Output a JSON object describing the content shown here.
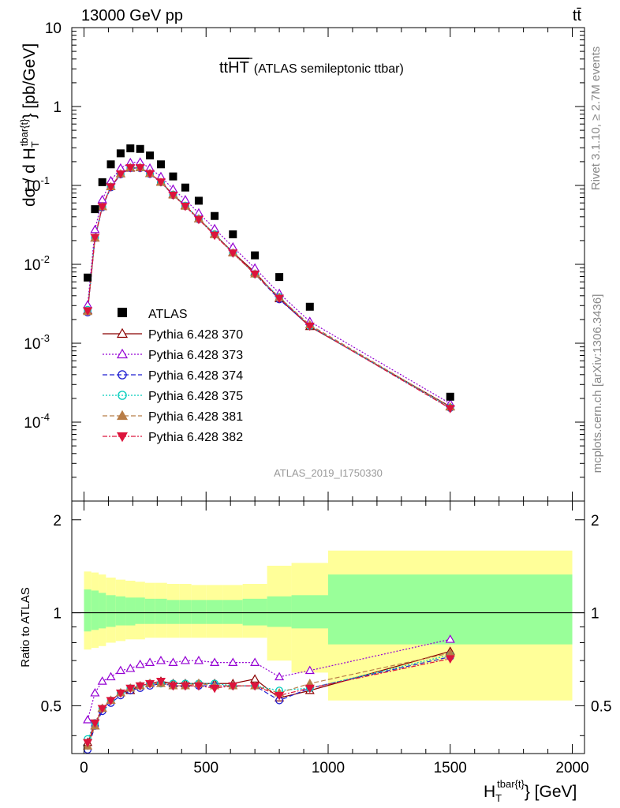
{
  "header": {
    "left": "13000 GeV pp",
    "right": "tt̄",
    "side_rivet": "Rivet 3.1.10, ≥ 2.7M events",
    "side_mcplots": "mcplots.cern.ch [arXiv:1306.3436]",
    "watermark": "ATLAS_2019_I1750330"
  },
  "chart_data": {
    "type": "scatter",
    "title_main": "tt",
    "title_overline": "HT",
    "title_paren": "(ATLAS semileptonic ttbar)",
    "xlabel": "H_T^{tbar{t}} [GeV]",
    "xlabel_main": "H",
    "xlabel_sub": "T",
    "xlabel_sup": "tbar{t}",
    "xlabel_tail": "} [GeV]",
    "ylabel": "dσ / d H_T^{tbar{t}} [pb/GeV]",
    "ylabel_pre": "dσ / d H",
    "ylabel_sub": "T",
    "ylabel_sup": "tbar{t}",
    "ylabel_tail": "} [pb/GeV]",
    "ratio_ylabel": "Ratio to ATLAS",
    "xlim": [
      -50,
      2050
    ],
    "ylim": [
      1e-05,
      10
    ],
    "ylog": true,
    "ratio_ylim": [
      0.35,
      2.3
    ],
    "x_ticks": [
      "0",
      "500",
      "1000",
      "1500",
      "2000"
    ],
    "y_ticks": [
      {
        "base": "10",
        "exp": "-4"
      },
      {
        "base": "10",
        "exp": "-3"
      },
      {
        "base": "10",
        "exp": "-2"
      },
      {
        "base": "10",
        "exp": "-1"
      },
      {
        "base": "1",
        "exp": ""
      },
      {
        "base": "10",
        "exp": ""
      }
    ],
    "ratio_ticks": [
      "0.5",
      "1",
      "2"
    ],
    "x": [
      15,
      45,
      75,
      110,
      150,
      190,
      230,
      270,
      315,
      365,
      415,
      470,
      535,
      610,
      700,
      800,
      925,
      1500
    ],
    "atlas": [
      0.0068,
      0.05,
      0.11,
      0.185,
      0.255,
      0.295,
      0.29,
      0.24,
      0.185,
      0.13,
      0.094,
      0.064,
      0.041,
      0.024,
      0.013,
      0.0069,
      0.0029,
      0.00021
    ],
    "band_edges": [
      0,
      30,
      60,
      90,
      130,
      170,
      210,
      250,
      290,
      340,
      390,
      440,
      500,
      570,
      650,
      750,
      850,
      1000,
      2000
    ],
    "band_inner": [
      [
        0.87,
        1.19
      ],
      [
        0.88,
        1.18
      ],
      [
        0.89,
        1.16
      ],
      [
        0.9,
        1.14
      ],
      [
        0.91,
        1.13
      ],
      [
        0.91,
        1.12
      ],
      [
        0.92,
        1.12
      ],
      [
        0.92,
        1.11
      ],
      [
        0.92,
        1.11
      ],
      [
        0.92,
        1.1
      ],
      [
        0.92,
        1.1
      ],
      [
        0.92,
        1.1
      ],
      [
        0.92,
        1.1
      ],
      [
        0.92,
        1.1
      ],
      [
        0.91,
        1.11
      ],
      [
        0.9,
        1.13
      ],
      [
        0.89,
        1.14
      ],
      [
        0.79,
        1.33
      ]
    ],
    "band_outer": [
      [
        0.76,
        1.36
      ],
      [
        0.77,
        1.35
      ],
      [
        0.78,
        1.33
      ],
      [
        0.8,
        1.3
      ],
      [
        0.81,
        1.28
      ],
      [
        0.82,
        1.27
      ],
      [
        0.82,
        1.26
      ],
      [
        0.83,
        1.25
      ],
      [
        0.83,
        1.25
      ],
      [
        0.83,
        1.24
      ],
      [
        0.83,
        1.24
      ],
      [
        0.83,
        1.23
      ],
      [
        0.83,
        1.23
      ],
      [
        0.83,
        1.23
      ],
      [
        0.83,
        1.24
      ],
      [
        0.7,
        1.42
      ],
      [
        0.64,
        1.45
      ],
      [
        0.52,
        1.59
      ]
    ],
    "series": [
      {
        "name": "Pythia 6.428 370",
        "color": "#8b0000",
        "marker": "triangle-open",
        "dash": "",
        "ratio": [
          0.38,
          0.43,
          0.49,
          0.52,
          0.55,
          0.56,
          0.58,
          0.59,
          0.6,
          0.59,
          0.59,
          0.59,
          0.59,
          0.59,
          0.61,
          0.53,
          0.56,
          0.75
        ]
      },
      {
        "name": "Pythia 6.428 373",
        "color": "#9400d3",
        "marker": "triangle-open",
        "dash": "2,2",
        "ratio": [
          0.45,
          0.55,
          0.6,
          0.62,
          0.65,
          0.66,
          0.68,
          0.69,
          0.7,
          0.69,
          0.7,
          0.7,
          0.69,
          0.69,
          0.69,
          0.62,
          0.65,
          0.82
        ]
      },
      {
        "name": "Pythia 6.428 374",
        "color": "#1f1fd1",
        "marker": "circle-open",
        "dash": "6,3",
        "ratio": [
          0.36,
          0.43,
          0.48,
          0.51,
          0.54,
          0.56,
          0.57,
          0.58,
          0.59,
          0.58,
          0.58,
          0.58,
          0.58,
          0.58,
          0.58,
          0.52,
          0.57,
          0.72
        ]
      },
      {
        "name": "Pythia 6.428 375",
        "color": "#00ccbb",
        "marker": "circle-open",
        "dash": "2,2",
        "ratio": [
          0.39,
          0.44,
          0.49,
          0.52,
          0.55,
          0.57,
          0.58,
          0.59,
          0.59,
          0.59,
          0.59,
          0.59,
          0.59,
          0.58,
          0.58,
          0.56,
          0.57,
          0.73
        ]
      },
      {
        "name": "Pythia 6.428 381",
        "color": "#b87d47",
        "marker": "triangle-filled",
        "dash": "6,3",
        "ratio": [
          0.37,
          0.43,
          0.49,
          0.52,
          0.55,
          0.57,
          0.58,
          0.59,
          0.59,
          0.58,
          0.58,
          0.59,
          0.58,
          0.58,
          0.58,
          0.55,
          0.59,
          0.74
        ]
      },
      {
        "name": "Pythia 6.428 382",
        "color": "#dc143c",
        "marker": "triangle-down-filled",
        "dash": "6,2,2,2",
        "ratio": [
          0.38,
          0.44,
          0.49,
          0.52,
          0.55,
          0.57,
          0.58,
          0.59,
          0.6,
          0.58,
          0.58,
          0.58,
          0.57,
          0.58,
          0.58,
          0.54,
          0.57,
          0.71
        ]
      }
    ],
    "atlas_label": "ATLAS"
  }
}
